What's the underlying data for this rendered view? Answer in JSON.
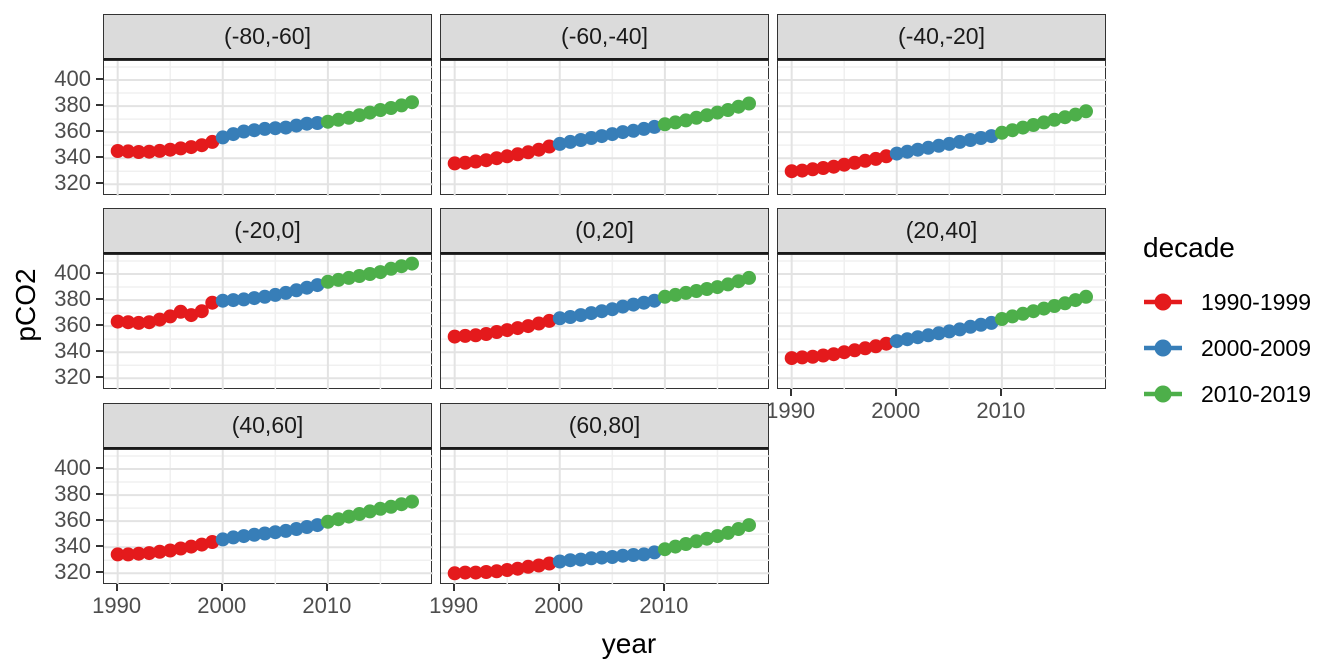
{
  "figure": {
    "y_axis_title": "pCO2",
    "x_axis_title": "year",
    "legend": {
      "title": "decade",
      "entries": [
        {
          "label": "1990-1999",
          "color": "#E41A1C"
        },
        {
          "label": "2000-2009",
          "color": "#377EB8"
        },
        {
          "label": "2010-2019",
          "color": "#4DAF4A"
        }
      ]
    }
  },
  "chart_data": {
    "type": "scatter",
    "title": "",
    "xlabel": "year",
    "ylabel": "pCO2",
    "legend_title": "decade",
    "legend_position": "right",
    "grid": true,
    "xlim": [
      1988.7,
      2020
    ],
    "ylim": [
      311,
      414.6
    ],
    "x_ticks": [
      1990,
      2000,
      2010
    ],
    "y_ticks": [
      400,
      380,
      360,
      340,
      320
    ],
    "x_minor": [
      1995,
      2005,
      2015
    ],
    "y_minor": [
      330,
      350,
      370,
      390,
      410
    ],
    "colors": {
      "panel_grid_major": "#e3e3e3",
      "panel_grid_minor": "#f0f0f0",
      "strip_background": "#dbdbdb",
      "tick_label": "#4d4d4d"
    },
    "decades": [
      {
        "name": "1990-1999",
        "color": "#E41A1C",
        "from": 1990,
        "to": 1999
      },
      {
        "name": "2000-2009",
        "color": "#377EB8",
        "from": 2000,
        "to": 2009
      },
      {
        "name": "2010-2019",
        "color": "#4DAF4A",
        "from": 2010,
        "to": 2019
      }
    ],
    "years": [
      1990,
      1991,
      1992,
      1993,
      1994,
      1995,
      1996,
      1997,
      1998,
      1999,
      2000,
      2001,
      2002,
      2003,
      2004,
      2005,
      2006,
      2007,
      2008,
      2009,
      2010,
      2011,
      2012,
      2013,
      2014,
      2015,
      2016,
      2017,
      2018
    ],
    "facets": [
      {
        "label": "(-80,-60]",
        "values": [
          345.5,
          345.2,
          344.8,
          345.0,
          345.6,
          346.5,
          347.5,
          348.5,
          350.0,
          352.5,
          356.0,
          358.5,
          360.5,
          361.5,
          362.5,
          363.0,
          363.5,
          365.0,
          366.5,
          367.0,
          368.0,
          369.5,
          371.0,
          373.0,
          375.0,
          377.0,
          378.5,
          380.5,
          383.0
        ]
      },
      {
        "label": "(-60,-40]",
        "values": [
          336.0,
          336.5,
          337.5,
          338.5,
          340.0,
          341.5,
          343.0,
          344.5,
          346.5,
          349.0,
          351.0,
          352.5,
          354.0,
          355.5,
          357.0,
          358.5,
          360.0,
          361.0,
          362.5,
          364.0,
          366.0,
          367.5,
          369.0,
          371.0,
          373.0,
          375.0,
          377.0,
          379.5,
          382.0
        ]
      },
      {
        "label": "(-40,-20]",
        "values": [
          330.0,
          330.5,
          331.5,
          332.5,
          333.5,
          335.0,
          336.5,
          338.0,
          339.5,
          341.5,
          343.5,
          345.0,
          346.5,
          348.0,
          349.5,
          351.0,
          352.5,
          354.0,
          355.5,
          357.0,
          359.5,
          361.5,
          363.5,
          365.5,
          367.5,
          369.5,
          371.5,
          373.5,
          376.0
        ]
      },
      {
        "label": "(-20,0]",
        "values": [
          363.5,
          363.0,
          362.5,
          363.0,
          365.0,
          367.5,
          371.0,
          368.5,
          371.5,
          378.0,
          379.5,
          380.0,
          380.5,
          381.5,
          382.5,
          384.0,
          385.5,
          387.5,
          389.5,
          391.5,
          394.0,
          395.5,
          397.0,
          398.5,
          400.0,
          401.5,
          404.0,
          406.0,
          408.0
        ]
      },
      {
        "label": "(0,20]",
        "values": [
          352.0,
          352.5,
          353.0,
          354.0,
          355.5,
          357.0,
          358.5,
          360.0,
          362.0,
          364.0,
          366.0,
          367.0,
          368.5,
          370.0,
          371.5,
          373.0,
          375.0,
          376.5,
          378.0,
          379.5,
          382.5,
          384.0,
          385.5,
          387.0,
          388.5,
          390.0,
          392.0,
          394.5,
          397.0
        ]
      },
      {
        "label": "(20,40]",
        "values": [
          335.5,
          336.0,
          336.5,
          337.5,
          338.5,
          340.0,
          341.5,
          343.0,
          344.5,
          346.5,
          348.5,
          350.0,
          351.5,
          353.0,
          354.5,
          356.0,
          357.5,
          359.5,
          361.0,
          362.5,
          365.5,
          367.5,
          369.5,
          371.5,
          373.5,
          375.5,
          377.5,
          380.0,
          382.5
        ]
      },
      {
        "label": "(40,60]",
        "values": [
          334.5,
          334.5,
          335.0,
          335.5,
          336.5,
          337.5,
          339.0,
          340.5,
          342.0,
          344.0,
          346.0,
          347.5,
          348.5,
          349.5,
          350.5,
          351.5,
          352.5,
          354.0,
          355.5,
          357.0,
          359.5,
          361.5,
          363.5,
          365.5,
          367.5,
          369.5,
          371.0,
          373.0,
          375.0
        ]
      },
      {
        "label": "(60,80]",
        "values": [
          320.0,
          320.5,
          320.5,
          321.0,
          321.5,
          322.5,
          323.5,
          325.0,
          326.0,
          327.5,
          329.0,
          330.0,
          330.5,
          331.5,
          332.0,
          332.5,
          333.5,
          334.0,
          334.5,
          336.0,
          338.5,
          340.5,
          342.5,
          344.5,
          346.5,
          348.5,
          351.0,
          354.0,
          357.0
        ]
      }
    ]
  }
}
